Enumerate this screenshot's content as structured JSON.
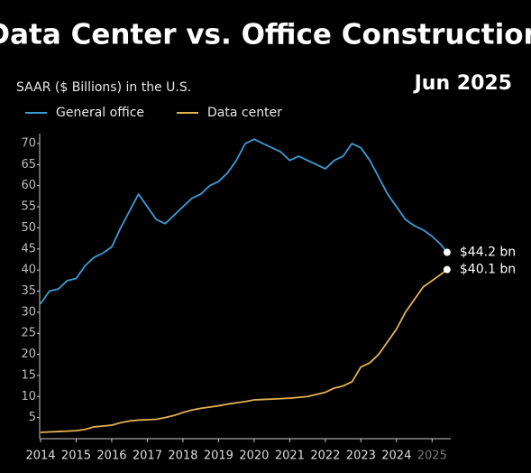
{
  "chart_data": {
    "type": "line",
    "title": "Data Center vs. Office Construction",
    "subtitle": "SAAR ($ Billions) in the U.S.",
    "date": "Jun 2025",
    "x": [
      2014,
      2014.25,
      2014.5,
      2014.75,
      2015,
      2015.25,
      2015.5,
      2015.75,
      2016,
      2016.25,
      2016.5,
      2016.75,
      2017,
      2017.25,
      2017.5,
      2017.75,
      2018,
      2018.25,
      2018.5,
      2018.75,
      2019,
      2019.25,
      2019.5,
      2019.75,
      2020,
      2020.25,
      2020.5,
      2020.75,
      2021,
      2021.25,
      2021.5,
      2021.75,
      2022,
      2022.25,
      2022.5,
      2022.75,
      2023,
      2023.25,
      2023.5,
      2023.75,
      2024,
      2024.25,
      2024.5,
      2024.75,
      2025,
      2025.25,
      2025.42
    ],
    "series": [
      {
        "name": "General office",
        "color": "#3d9bd8",
        "values": [
          32,
          35,
          35.5,
          37.5,
          38,
          41,
          43,
          44,
          45.5,
          50,
          54,
          58,
          55,
          52,
          51,
          53,
          55,
          57,
          58,
          60,
          61,
          63,
          66,
          70,
          71,
          70,
          69,
          68,
          66,
          67,
          66,
          65,
          64,
          66,
          67,
          70,
          69,
          66,
          62,
          58,
          55,
          52,
          50.5,
          49.5,
          48,
          46,
          44.2
        ],
        "value_labels": [
          null,
          null,
          null,
          null,
          null,
          null,
          null,
          null,
          null,
          null,
          null,
          null,
          null,
          null,
          null,
          null,
          null,
          null,
          null,
          null,
          null,
          null,
          null,
          null,
          null,
          null,
          null,
          null,
          null,
          null,
          null,
          null,
          null,
          null,
          null,
          null,
          null,
          null,
          null,
          null,
          null,
          null,
          null,
          null,
          null,
          null,
          "$44.2 bn"
        ]
      },
      {
        "name": "Data center",
        "color": "#e3b253",
        "values": [
          1.5,
          1.6,
          1.7,
          1.8,
          1.9,
          2.2,
          2.8,
          3.0,
          3.2,
          3.8,
          4.2,
          4.4,
          4.5,
          4.6,
          5.0,
          5.5,
          6.2,
          6.8,
          7.2,
          7.5,
          7.8,
          8.2,
          8.5,
          8.8,
          9.2,
          9.3,
          9.4,
          9.5,
          9.6,
          9.8,
          10,
          10.5,
          11,
          12,
          12.5,
          13.5,
          17,
          18,
          20,
          23,
          26,
          30,
          33,
          36,
          37.5,
          39,
          40.1
        ],
        "value_labels": [
          null,
          null,
          null,
          null,
          null,
          null,
          null,
          null,
          null,
          null,
          null,
          null,
          null,
          null,
          null,
          null,
          null,
          null,
          null,
          null,
          null,
          null,
          null,
          null,
          null,
          null,
          null,
          null,
          null,
          null,
          null,
          null,
          null,
          null,
          null,
          null,
          null,
          null,
          null,
          null,
          null,
          null,
          null,
          null,
          null,
          null,
          "$40.1 bn"
        ]
      }
    ],
    "xlim": [
      2014,
      2025.6
    ],
    "xticks": [
      2014,
      2015,
      2016,
      2017,
      2018,
      2019,
      2020,
      2021,
      2022,
      2023,
      2024,
      2025
    ],
    "ylim": [
      0,
      73
    ],
    "yticks": [
      5,
      10,
      15,
      20,
      25,
      30,
      35,
      40,
      45,
      50,
      55,
      60,
      65,
      70
    ]
  }
}
